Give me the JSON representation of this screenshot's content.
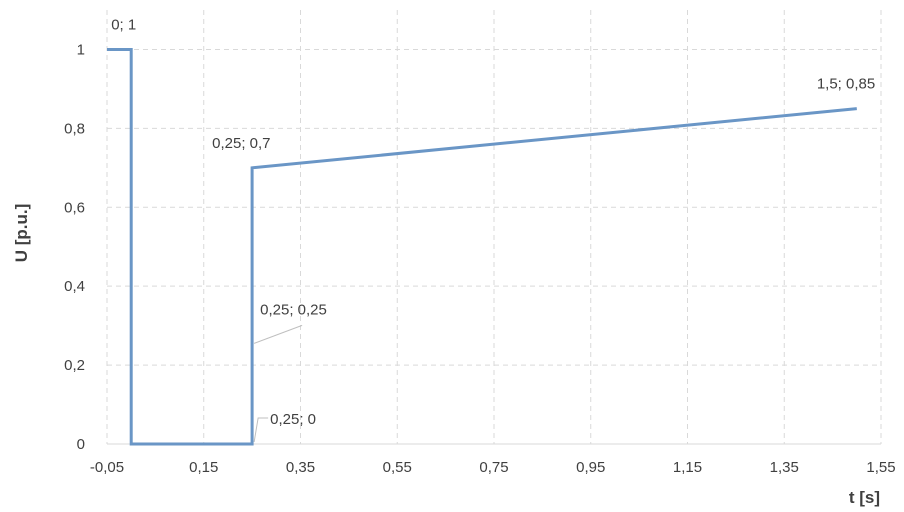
{
  "chart_data": {
    "type": "line",
    "title": "",
    "xlabel": "t [s]",
    "ylabel": "U [p.u.]",
    "xlim": [
      -0.05,
      1.55
    ],
    "ylim": [
      0,
      1.1
    ],
    "x_ticks": [
      -0.05,
      0.15,
      0.35,
      0.55,
      0.75,
      0.95,
      1.15,
      1.35,
      1.55
    ],
    "x_tick_labels": [
      "-0,05",
      "0,15",
      "0,35",
      "0,55",
      "0,75",
      "0,95",
      "1,15",
      "1,35",
      "1,55"
    ],
    "y_ticks": [
      0,
      0.2,
      0.4,
      0.6,
      0.8,
      1
    ],
    "y_tick_labels": [
      "0",
      "0,2",
      "0,4",
      "0,6",
      "0,8",
      "1"
    ],
    "grid": true,
    "grid_style": "dashed",
    "legend": "none",
    "series": [
      {
        "color": "#6a96c6",
        "x": [
          -0.05,
          0,
          0,
          0.25,
          0.25,
          0.25,
          1.5
        ],
        "y": [
          1,
          1,
          0,
          0,
          0.25,
          0.7,
          0.85
        ]
      }
    ],
    "data_labels": [
      {
        "text": "0; 1",
        "x": 0,
        "y": 1
      },
      {
        "text": "0,25; 0,7",
        "x": 0.25,
        "y": 0.7
      },
      {
        "text": "0,25; 0,25",
        "x": 0.25,
        "y": 0.25
      },
      {
        "text": "0,25; 0",
        "x": 0.25,
        "y": 0
      },
      {
        "text": "1,5; 0,85",
        "x": 1.5,
        "y": 0.85
      }
    ]
  }
}
